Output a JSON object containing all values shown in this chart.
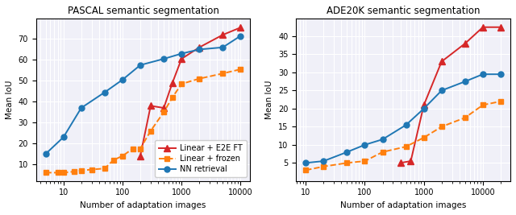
{
  "pascal": {
    "title": "PASCAL semantic segmentation",
    "xlabel": "Number of adaptation images",
    "ylabel": "Mean IoU",
    "ylim": [
      2,
      80
    ],
    "yticks": [
      10,
      20,
      30,
      40,
      50,
      60,
      70
    ],
    "e2eft": {
      "x": [
        200,
        300,
        500,
        700,
        1000,
        2000,
        5000,
        10000
      ],
      "y": [
        14.0,
        38.0,
        37.0,
        49.0,
        60.5,
        66.0,
        72.0,
        75.5
      ],
      "color": "#d62728",
      "marker": "^",
      "markersize": 6,
      "label": "Linear + E2E FT",
      "linestyle": "-"
    },
    "frozen": {
      "x": [
        5,
        8,
        10,
        15,
        20,
        30,
        50,
        70,
        100,
        150,
        200,
        300,
        500,
        700,
        1000,
        2000,
        5000,
        10000
      ],
      "y": [
        6.0,
        6.0,
        6.0,
        6.5,
        7.0,
        7.5,
        8.0,
        12.0,
        14.0,
        17.5,
        17.5,
        26.0,
        35.0,
        42.0,
        48.5,
        51.0,
        53.5,
        55.5
      ],
      "color": "#ff7f0e",
      "marker": "s",
      "markersize": 4,
      "label": "Linear + frozen",
      "linestyle": "--"
    },
    "nn": {
      "x": [
        5,
        10,
        20,
        50,
        100,
        200,
        500,
        1000,
        2000,
        5000,
        10000
      ],
      "y": [
        15.0,
        23.0,
        37.0,
        44.5,
        50.5,
        57.5,
        60.5,
        63.0,
        65.0,
        66.0,
        71.5
      ],
      "color": "#1f77b4",
      "marker": "o",
      "markersize": 5,
      "label": "NN retrieval",
      "linestyle": "-"
    },
    "legend_loc": "lower right",
    "xlim": [
      4,
      20000
    ]
  },
  "ade20k": {
    "title": "ADE20K semantic segmentation",
    "xlabel": "Number of adaptation images",
    "ylabel": "Mean IoU",
    "ylim": [
      0,
      45
    ],
    "yticks": [
      5,
      10,
      15,
      20,
      25,
      30,
      35,
      40
    ],
    "e2eft": {
      "x": [
        400,
        600,
        1000,
        2000,
        5000,
        10000,
        20000
      ],
      "y": [
        5.0,
        5.5,
        21.0,
        33.0,
        38.0,
        42.5,
        42.5
      ],
      "color": "#d62728",
      "marker": "^",
      "markersize": 6,
      "label": "Linear + E2E FT",
      "linestyle": "-"
    },
    "frozen": {
      "x": [
        10,
        20,
        50,
        100,
        200,
        500,
        1000,
        2000,
        5000,
        10000,
        20000
      ],
      "y": [
        3.0,
        4.0,
        5.0,
        5.5,
        8.0,
        9.5,
        12.0,
        15.0,
        17.5,
        21.0,
        22.0
      ],
      "color": "#ff7f0e",
      "marker": "s",
      "markersize": 4,
      "label": "Linear + frozen",
      "linestyle": "--"
    },
    "nn": {
      "x": [
        10,
        20,
        50,
        100,
        200,
        500,
        1000,
        2000,
        5000,
        10000,
        20000
      ],
      "y": [
        5.0,
        5.5,
        8.0,
        10.0,
        11.5,
        15.5,
        20.0,
        25.0,
        27.5,
        29.5,
        29.5
      ],
      "color": "#1f77b4",
      "marker": "o",
      "markersize": 5,
      "label": "NN retrieval",
      "linestyle": "-"
    },
    "xlim": [
      9,
      30000
    ]
  }
}
